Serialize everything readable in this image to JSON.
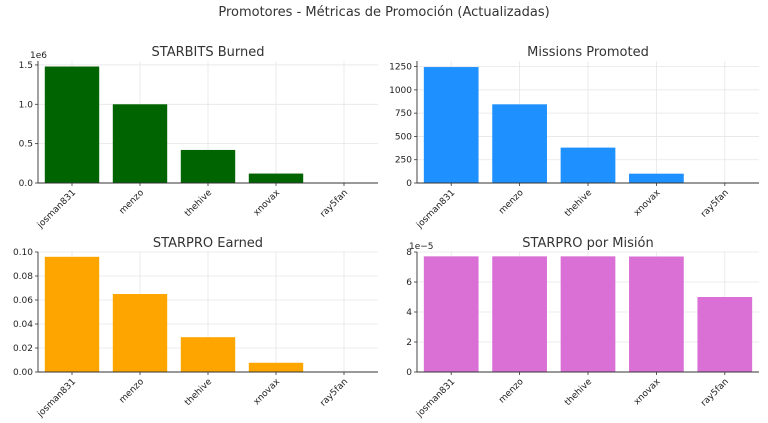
{
  "figure": {
    "title": "Promotores - Métricas de Promoción (Actualizadas)"
  },
  "chart_data": [
    {
      "type": "bar",
      "title": "STARBITS Burned",
      "categories": [
        "josman831",
        "menzo",
        "thehive",
        "xnovax",
        "ray5fan"
      ],
      "values": [
        1480000,
        1000000,
        420000,
        120000,
        0
      ],
      "color": "#006400",
      "ylim": [
        0,
        1550000
      ],
      "yticks": [
        0,
        500000,
        1000000,
        1500000
      ],
      "ytick_labels": [
        "0.0",
        "0.5",
        "1.0",
        "1.5"
      ],
      "offset_label": "1e6",
      "grid": true
    },
    {
      "type": "bar",
      "title": "Missions Promoted",
      "categories": [
        "josman831",
        "menzo",
        "thehive",
        "xnovax",
        "ray5fan"
      ],
      "values": [
        1245,
        845,
        380,
        100,
        0
      ],
      "color": "#1e90ff",
      "ylim": [
        0,
        1310
      ],
      "yticks": [
        0,
        250,
        500,
        750,
        1000,
        1250
      ],
      "ytick_labels": [
        "0",
        "250",
        "500",
        "750",
        "1000",
        "1250"
      ],
      "offset_label": "",
      "grid": true
    },
    {
      "type": "bar",
      "title": "STARPRO Earned",
      "categories": [
        "josman831",
        "menzo",
        "thehive",
        "xnovax",
        "ray5fan"
      ],
      "values": [
        0.096,
        0.065,
        0.029,
        0.0077,
        0
      ],
      "color": "#ffa500",
      "ylim": [
        0,
        0.1
      ],
      "yticks": [
        0,
        0.02,
        0.04,
        0.06,
        0.08,
        0.1
      ],
      "ytick_labels": [
        "0.00",
        "0.02",
        "0.04",
        "0.06",
        "0.08",
        "0.10"
      ],
      "offset_label": "",
      "grid": true
    },
    {
      "type": "bar",
      "title": "STARPRO por Misión",
      "categories": [
        "josman831",
        "menzo",
        "thehive",
        "xnovax",
        "ray5fan"
      ],
      "values": [
        7.71e-05,
        7.71e-05,
        7.71e-05,
        7.7e-05,
        5e-05
      ],
      "color": "#da70d6",
      "ylim": [
        0,
        8e-05
      ],
      "yticks": [
        0,
        2e-05,
        4e-05,
        6e-05,
        8e-05
      ],
      "ytick_labels": [
        "0",
        "2",
        "4",
        "6",
        "8"
      ],
      "offset_label": "1e−5",
      "grid": true
    }
  ]
}
